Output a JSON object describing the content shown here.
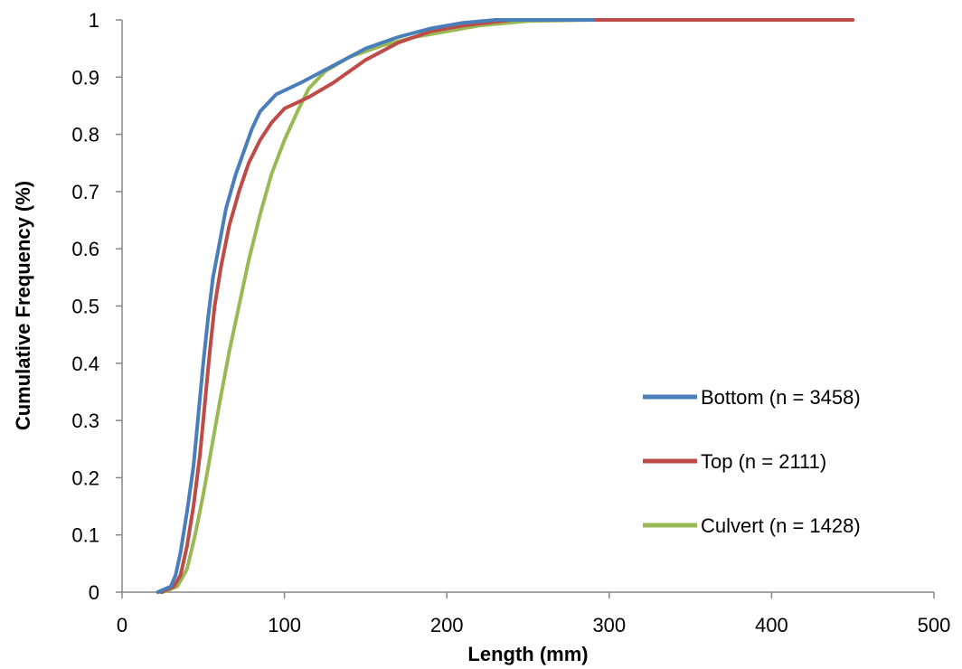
{
  "chart_data": {
    "type": "line",
    "title": "",
    "xlabel": "Length (mm)",
    "ylabel": "Cumulative Frequency (%)",
    "xlim": [
      0,
      500
    ],
    "ylim": [
      0,
      1
    ],
    "x_ticks": [
      "0",
      "100",
      "200",
      "300",
      "400",
      "500"
    ],
    "y_ticks": [
      "0",
      "0.1",
      "0.2",
      "0.3",
      "0.4",
      "0.5",
      "0.6",
      "0.7",
      "0.8",
      "0.9",
      "1"
    ],
    "grid": false,
    "legend_position": "right",
    "series": [
      {
        "name": "Bottom (n = 3458)",
        "color": "#4a7ebb",
        "points": [
          [
            22,
            0
          ],
          [
            30,
            0.01
          ],
          [
            33,
            0.03
          ],
          [
            36,
            0.07
          ],
          [
            40,
            0.14
          ],
          [
            44,
            0.22
          ],
          [
            47,
            0.31
          ],
          [
            50,
            0.4
          ],
          [
            53,
            0.48
          ],
          [
            56,
            0.55
          ],
          [
            60,
            0.61
          ],
          [
            64,
            0.67
          ],
          [
            70,
            0.73
          ],
          [
            75,
            0.77
          ],
          [
            80,
            0.81
          ],
          [
            85,
            0.84
          ],
          [
            95,
            0.87
          ],
          [
            110,
            0.89
          ],
          [
            130,
            0.92
          ],
          [
            150,
            0.95
          ],
          [
            170,
            0.97
          ],
          [
            190,
            0.985
          ],
          [
            210,
            0.995
          ],
          [
            230,
            1
          ],
          [
            290,
            1
          ]
        ]
      },
      {
        "name": "Top (n = 2111)",
        "color": "#be4b48",
        "points": [
          [
            24,
            0
          ],
          [
            32,
            0.01
          ],
          [
            36,
            0.03
          ],
          [
            40,
            0.08
          ],
          [
            44,
            0.15
          ],
          [
            48,
            0.24
          ],
          [
            51,
            0.33
          ],
          [
            54,
            0.42
          ],
          [
            57,
            0.5
          ],
          [
            61,
            0.57
          ],
          [
            66,
            0.64
          ],
          [
            72,
            0.7
          ],
          [
            78,
            0.75
          ],
          [
            85,
            0.79
          ],
          [
            92,
            0.82
          ],
          [
            100,
            0.845
          ],
          [
            115,
            0.865
          ],
          [
            130,
            0.89
          ],
          [
            150,
            0.93
          ],
          [
            170,
            0.96
          ],
          [
            190,
            0.98
          ],
          [
            210,
            0.99
          ],
          [
            240,
            1
          ],
          [
            450,
            1
          ]
        ]
      },
      {
        "name": "Culvert (n = 1428)",
        "color": "#98b954",
        "points": [
          [
            25,
            0
          ],
          [
            34,
            0.01
          ],
          [
            40,
            0.04
          ],
          [
            45,
            0.1
          ],
          [
            50,
            0.17
          ],
          [
            55,
            0.25
          ],
          [
            60,
            0.33
          ],
          [
            66,
            0.42
          ],
          [
            72,
            0.5
          ],
          [
            78,
            0.58
          ],
          [
            85,
            0.66
          ],
          [
            92,
            0.73
          ],
          [
            100,
            0.79
          ],
          [
            108,
            0.84
          ],
          [
            115,
            0.88
          ],
          [
            125,
            0.91
          ],
          [
            140,
            0.935
          ],
          [
            160,
            0.955
          ],
          [
            180,
            0.97
          ],
          [
            200,
            0.98
          ],
          [
            220,
            0.99
          ],
          [
            250,
            0.998
          ],
          [
            290,
            1
          ]
        ]
      }
    ]
  }
}
